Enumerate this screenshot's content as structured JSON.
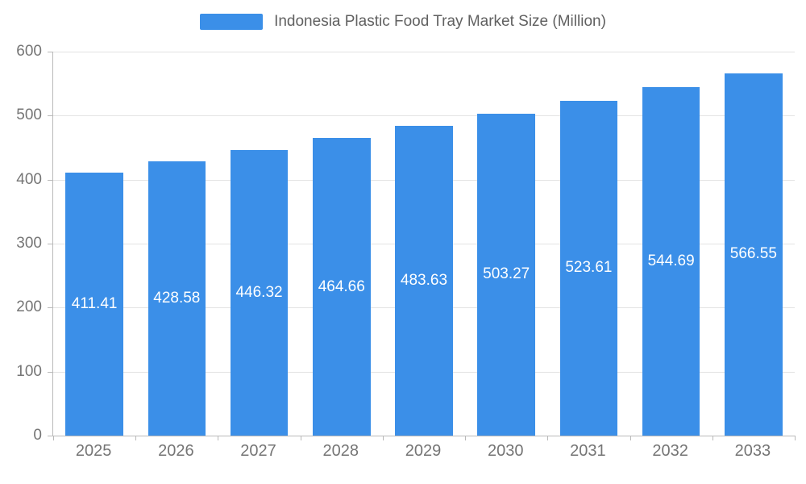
{
  "legend": {
    "title": "Indonesia Plastic Food Tray Market Size (Million)"
  },
  "chart_data": {
    "type": "bar",
    "title": "Indonesia Plastic Food Tray Market Size (Million)",
    "categories": [
      "2025",
      "2026",
      "2027",
      "2028",
      "2029",
      "2030",
      "2031",
      "2032",
      "2033"
    ],
    "values": [
      411.41,
      428.58,
      446.32,
      464.66,
      483.63,
      503.27,
      523.61,
      544.69,
      566.55
    ],
    "data_labels": [
      "411.41",
      "428.58",
      "446.32",
      "464.66",
      "483.63",
      "503.27",
      "523.61",
      "544.69",
      "566.55"
    ],
    "xlabel": "",
    "ylabel": "",
    "ylim": [
      0,
      600
    ],
    "yticks": [
      0,
      100,
      200,
      300,
      400,
      500,
      600
    ],
    "grid": true,
    "legend_position": "top",
    "colors": {
      "bar": "#3b8fe8",
      "bar_label": "#ffffff",
      "axis_text": "#757575",
      "title_text": "#616161",
      "gridline": "#e3e3e3",
      "axis_line": "#b9b9b9"
    }
  }
}
